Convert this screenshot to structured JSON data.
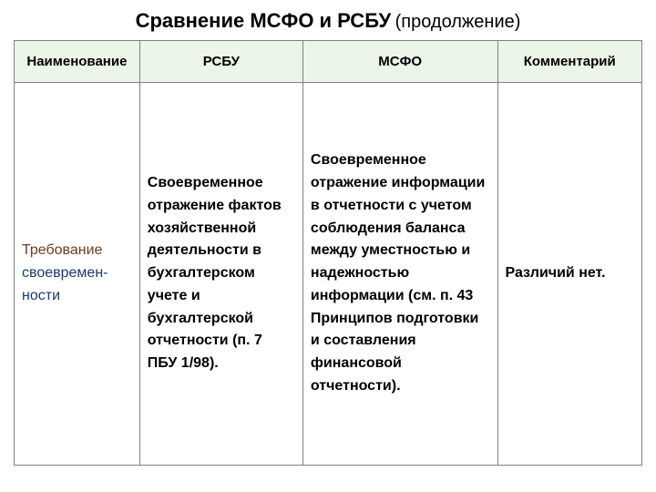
{
  "title": "Сравнение МСФО и РСБУ",
  "title_suffix": "(продолжение)",
  "columns": {
    "name": "Наименование",
    "rsbu": "РСБУ",
    "msfo": "МСФО",
    "comment": "Комментарий"
  },
  "row": {
    "name_line1": "Требование",
    "name_line2": "своевремен-",
    "name_line3": "ности",
    "rsbu": "Своевременное отражение фактов хозяйственной деятельности в бухгалтерском учете и бухгалтерской отчетности (п. 7 ПБУ 1/98).",
    "msfo": "Своевременное отражение информации в отчетности с учетом соблюдения баланса между уместностью и надежностью информации (см. п. 43 Принципов подготовки и составления финансовой отчетности).",
    "comment": "Различий нет."
  },
  "colors": {
    "header_bg": "#ebf5e8",
    "border": "#808080",
    "name_accent1": "#6f3a1f",
    "name_accent2": "#183a68"
  }
}
